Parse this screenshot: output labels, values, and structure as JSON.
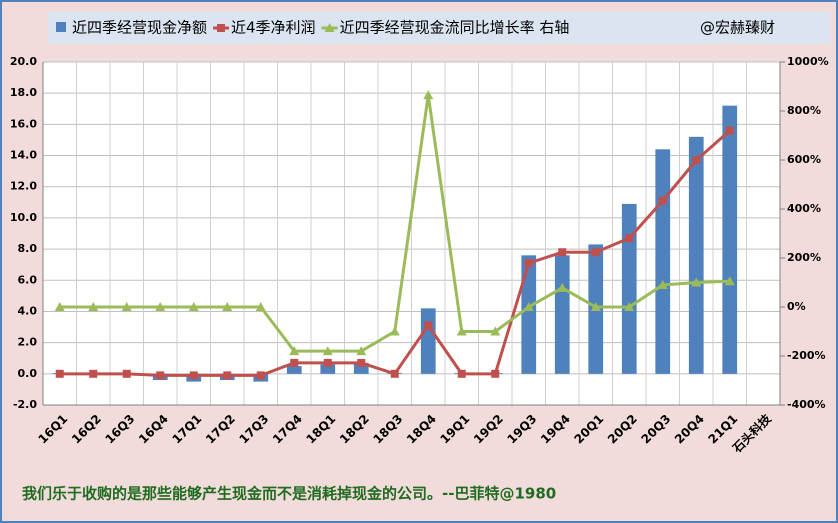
{
  "chart_data": {
    "type": "bar_line",
    "categories": [
      "16Q1",
      "16Q2",
      "16Q3",
      "16Q4",
      "17Q1",
      "17Q2",
      "17Q3",
      "17Q4",
      "18Q1",
      "18Q2",
      "18Q3",
      "18Q4",
      "19Q1",
      "19Q2",
      "19Q3",
      "19Q4",
      "20Q1",
      "20Q2",
      "20Q3",
      "20Q4",
      "21Q1",
      "石头科技"
    ],
    "series": [
      {
        "name": "近四季经营现金净额",
        "type": "bar",
        "color": "#4f81bd",
        "values": [
          0.05,
          0.05,
          0.05,
          -0.4,
          -0.5,
          -0.4,
          -0.5,
          0.5,
          0.6,
          0.7,
          0.05,
          4.2,
          0.05,
          0.05,
          7.6,
          7.6,
          8.3,
          10.9,
          14.4,
          15.2,
          17.2,
          null
        ]
      },
      {
        "name": "近4季净利润",
        "type": "line",
        "marker": "square",
        "color": "#c0504d",
        "values": [
          0.0,
          0.0,
          0.0,
          -0.1,
          -0.1,
          -0.1,
          -0.1,
          0.7,
          0.7,
          0.7,
          0.0,
          3.1,
          0.0,
          0.0,
          7.1,
          7.8,
          7.8,
          8.7,
          11.1,
          13.7,
          15.6,
          null
        ]
      },
      {
        "name": "近四季经营现金流同比增长率 右轴",
        "type": "line",
        "marker": "triangle",
        "color": "#9bbb59",
        "axis": "y2",
        "values": [
          0,
          0,
          0,
          0,
          0,
          0,
          0,
          -180,
          -180,
          -180,
          -100,
          865,
          -100,
          -100,
          0,
          78,
          0,
          0,
          90,
          100,
          105,
          null
        ]
      }
    ],
    "ylim": [
      -2,
      20
    ],
    "yticks": [
      {
        "value": -2,
        "label": "-2.0"
      },
      {
        "value": 0,
        "label": "0.0"
      },
      {
        "value": 2,
        "label": "2.0"
      },
      {
        "value": 4,
        "label": "4.0"
      },
      {
        "value": 6,
        "label": "6.0"
      },
      {
        "value": 8,
        "label": "8.0"
      },
      {
        "value": 10,
        "label": "10.0"
      },
      {
        "value": 12,
        "label": "12.0"
      },
      {
        "value": 14,
        "label": "14.0"
      },
      {
        "value": 16,
        "label": "16.0"
      },
      {
        "value": 18,
        "label": "18.0"
      },
      {
        "value": 20,
        "label": "20.0"
      }
    ],
    "y2lim": [
      -400,
      1000
    ],
    "y2ticks": [
      {
        "value": -400,
        "label": "-400%"
      },
      {
        "value": -200,
        "label": "-200%"
      },
      {
        "value": 0,
        "label": "0%"
      },
      {
        "value": 200,
        "label": "200%"
      },
      {
        "value": 400,
        "label": "400%"
      },
      {
        "value": 600,
        "label": "600%"
      },
      {
        "value": 800,
        "label": "800%"
      },
      {
        "value": 1000,
        "label": "1000%"
      }
    ],
    "grid": true,
    "legend": "top",
    "watermark": "@宏赫臻财",
    "annotation": "我们乐于收购的是那些能够产生现金而不是消耗掉现金的公司。--巴菲特@1980"
  }
}
